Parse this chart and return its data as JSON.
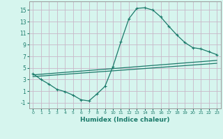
{
  "title": "",
  "xlabel": "Humidex (Indice chaleur)",
  "bg_color": "#d6f5ee",
  "grid_color": "#c8b8c8",
  "line_color": "#1a7a6a",
  "xlim": [
    -0.5,
    23.5
  ],
  "ylim": [
    -2.0,
    16.5
  ],
  "yticks": [
    -1,
    1,
    3,
    5,
    7,
    9,
    11,
    13,
    15
  ],
  "xticks": [
    0,
    1,
    2,
    3,
    4,
    5,
    6,
    7,
    8,
    9,
    10,
    11,
    12,
    13,
    14,
    15,
    16,
    17,
    18,
    19,
    20,
    21,
    22,
    23
  ],
  "line1_x": [
    0,
    1,
    2,
    3,
    4,
    5,
    6,
    7,
    8,
    9,
    10,
    11,
    12,
    13,
    14,
    15,
    16,
    17,
    18,
    19,
    20,
    21,
    22,
    23
  ],
  "line1_y": [
    4.0,
    3.0,
    2.2,
    1.3,
    0.9,
    0.3,
    -0.5,
    -0.7,
    0.5,
    1.8,
    5.2,
    9.5,
    13.5,
    15.3,
    15.4,
    15.0,
    13.8,
    12.2,
    10.7,
    9.4,
    8.5,
    8.3,
    7.8,
    7.3
  ],
  "line2_x": [
    0,
    23
  ],
  "line2_y": [
    3.8,
    6.3
  ],
  "line3_x": [
    0,
    23
  ],
  "line3_y": [
    3.5,
    5.8
  ]
}
